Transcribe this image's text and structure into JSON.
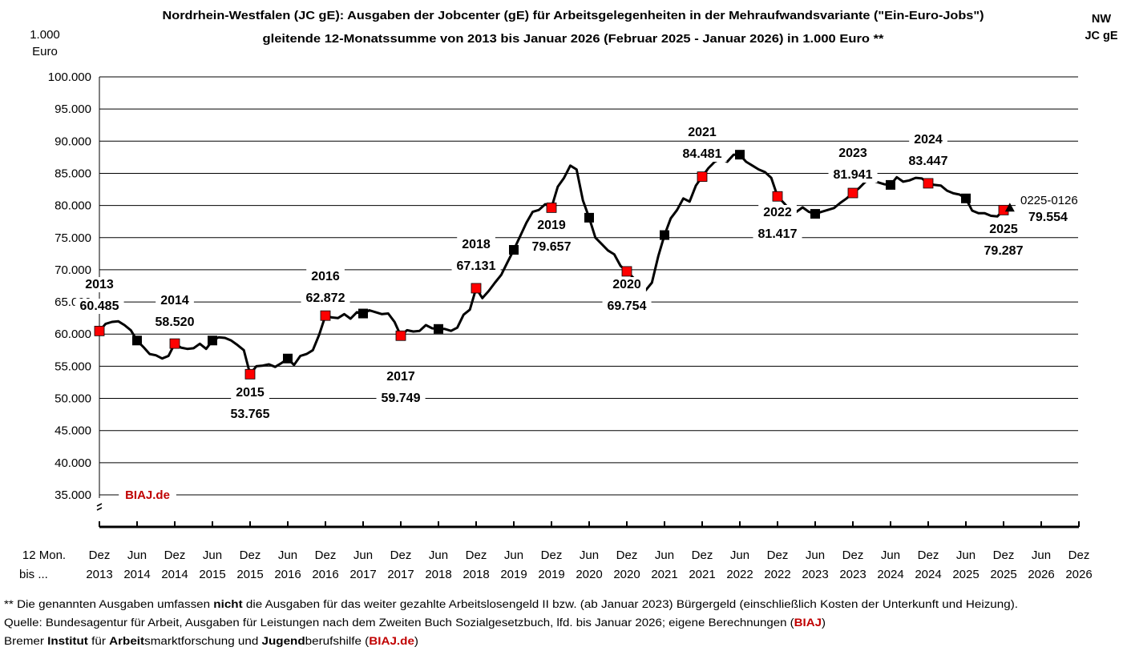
{
  "chart_data": {
    "type": "line",
    "title": "Nordrhein-Westfalen (JC gE): Ausgaben der Jobcenter (gE) für Arbeitsgelegenheiten in der Mehraufwandsvariante (\"Ein-Euro-Jobs\")",
    "subtitle": "gleitende 12-Monatssumme von 2013 bis Januar 2026 (Februar 2025 - Januar 2026) in 1.000 Euro **",
    "ylabel": [
      "1.000",
      "Euro"
    ],
    "region": [
      "NW",
      "JC gE"
    ],
    "xlabel": [
      "12 Mon.",
      "bis ..."
    ],
    "ylim": [
      35000,
      100000
    ],
    "yticks": [
      "35.000",
      "40.000",
      "45.000",
      "50.000",
      "55.000",
      "60.000",
      "65.000",
      "70.000",
      "75.000",
      "80.000",
      "85.000",
      "90.000",
      "95.000",
      "100.000"
    ],
    "xticks": [
      [
        "Dez",
        "2013"
      ],
      [
        "Jun",
        "2014"
      ],
      [
        "Dez",
        "2014"
      ],
      [
        "Jun",
        "2015"
      ],
      [
        "Dez",
        "2015"
      ],
      [
        "Jun",
        "2016"
      ],
      [
        "Dez",
        "2016"
      ],
      [
        "Jun",
        "2017"
      ],
      [
        "Dez",
        "2017"
      ],
      [
        "Jun",
        "2018"
      ],
      [
        "Dez",
        "2018"
      ],
      [
        "Jun",
        "2019"
      ],
      [
        "Dez",
        "2019"
      ],
      [
        "Jun",
        "2020"
      ],
      [
        "Dez",
        "2020"
      ],
      [
        "Jun",
        "2021"
      ],
      [
        "Dez",
        "2021"
      ],
      [
        "Jun",
        "2022"
      ],
      [
        "Dez",
        "2022"
      ],
      [
        "Jun",
        "2023"
      ],
      [
        "Dez",
        "2023"
      ],
      [
        "Jun",
        "2024"
      ],
      [
        "Dez",
        "2024"
      ],
      [
        "Jun",
        "2025"
      ],
      [
        "Dez",
        "2025"
      ],
      [
        "Jun",
        "2026"
      ],
      [
        "Dez",
        "2026"
      ]
    ],
    "grid": true,
    "y_axis_break": true,
    "colors": {
      "line": "#000000",
      "december_marker": "#ff0000",
      "june_marker": "#000000",
      "watermark": "#c00000"
    },
    "x": [
      "2013-12",
      "2014-01",
      "2014-02",
      "2014-03",
      "2014-04",
      "2014-05",
      "2014-06",
      "2014-07",
      "2014-08",
      "2014-09",
      "2014-10",
      "2014-11",
      "2014-12",
      "2015-01",
      "2015-02",
      "2015-03",
      "2015-04",
      "2015-05",
      "2015-06",
      "2015-07",
      "2015-08",
      "2015-09",
      "2015-10",
      "2015-11",
      "2015-12",
      "2016-01",
      "2016-02",
      "2016-03",
      "2016-04",
      "2016-05",
      "2016-06",
      "2016-07",
      "2016-08",
      "2016-09",
      "2016-10",
      "2016-11",
      "2016-12",
      "2017-01",
      "2017-02",
      "2017-03",
      "2017-04",
      "2017-05",
      "2017-06",
      "2017-07",
      "2017-08",
      "2017-09",
      "2017-10",
      "2017-11",
      "2017-12",
      "2018-01",
      "2018-02",
      "2018-03",
      "2018-04",
      "2018-05",
      "2018-06",
      "2018-07",
      "2018-08",
      "2018-09",
      "2018-10",
      "2018-11",
      "2018-12",
      "2019-01",
      "2019-02",
      "2019-03",
      "2019-04",
      "2019-05",
      "2019-06",
      "2019-07",
      "2019-08",
      "2019-09",
      "2019-10",
      "2019-11",
      "2019-12",
      "2020-01",
      "2020-02",
      "2020-03",
      "2020-04",
      "2020-05",
      "2020-06",
      "2020-07",
      "2020-08",
      "2020-09",
      "2020-10",
      "2020-11",
      "2020-12",
      "2021-01",
      "2021-02",
      "2021-03",
      "2021-04",
      "2021-05",
      "2021-06",
      "2021-07",
      "2021-08",
      "2021-09",
      "2021-10",
      "2021-11",
      "2021-12",
      "2022-01",
      "2022-02",
      "2022-03",
      "2022-04",
      "2022-05",
      "2022-06",
      "2022-07",
      "2022-08",
      "2022-09",
      "2022-10",
      "2022-11",
      "2022-12",
      "2023-01",
      "2023-02",
      "2023-03",
      "2023-04",
      "2023-05",
      "2023-06",
      "2023-07",
      "2023-08",
      "2023-09",
      "2023-10",
      "2023-11",
      "2023-12",
      "2024-01",
      "2024-02",
      "2024-03",
      "2024-04",
      "2024-05",
      "2024-06",
      "2024-07",
      "2024-08",
      "2024-09",
      "2024-10",
      "2024-11",
      "2024-12",
      "2025-01",
      "2025-02",
      "2025-03",
      "2025-04",
      "2025-05",
      "2025-06",
      "2025-07",
      "2025-08",
      "2025-09",
      "2025-10",
      "2025-11",
      "2025-12",
      "2026-01"
    ],
    "values": [
      60485,
      61600,
      61900,
      62000,
      61400,
      60600,
      59000,
      58000,
      56900,
      56700,
      56200,
      56600,
      58520,
      57900,
      57700,
      57800,
      58500,
      57700,
      59000,
      59500,
      59400,
      59000,
      58300,
      57500,
      53765,
      55000,
      55100,
      55300,
      54900,
      55500,
      56200,
      55200,
      56600,
      56900,
      57500,
      59900,
      62872,
      62600,
      62500,
      63100,
      62400,
      63400,
      63200,
      63700,
      63400,
      63100,
      63200,
      61900,
      59749,
      60600,
      60400,
      60500,
      61400,
      60900,
      60800,
      60800,
      60500,
      61000,
      63000,
      63800,
      67131,
      65600,
      66700,
      68000,
      69200,
      71200,
      73100,
      75200,
      77300,
      79000,
      79300,
      80200,
      79657,
      82900,
      84300,
      86200,
      85600,
      80800,
      78100,
      75000,
      74000,
      73000,
      72400,
      70600,
      69754,
      68800,
      67800,
      66800,
      68000,
      72100,
      75400,
      78000,
      79300,
      81100,
      80600,
      83100,
      84481,
      85800,
      86800,
      87300,
      86800,
      87900,
      87900,
      86800,
      86200,
      85600,
      85200,
      84300,
      81417,
      80400,
      79300,
      79000,
      79700,
      79000,
      78700,
      79000,
      79300,
      79600,
      80400,
      81100,
      81941,
      82700,
      83700,
      83900,
      83600,
      83300,
      83200,
      84400,
      83700,
      83900,
      84300,
      84200,
      83447,
      83200,
      83100,
      82300,
      81900,
      81700,
      81100,
      79200,
      78800,
      78800,
      78400,
      78300,
      79287,
      79554
    ],
    "annotations": [
      {
        "year": "2013",
        "value": "60.485"
      },
      {
        "year": "2014",
        "value": "58.520"
      },
      {
        "year": "2015",
        "value": "53.765"
      },
      {
        "year": "2016",
        "value": "62.872"
      },
      {
        "year": "2017",
        "value": "59.749"
      },
      {
        "year": "2018",
        "value": "67.131"
      },
      {
        "year": "2019",
        "value": "79.657"
      },
      {
        "year": "2020",
        "value": "69.754"
      },
      {
        "year": "2021",
        "value": "84.481"
      },
      {
        "year": "2022",
        "value": "81.417"
      },
      {
        "year": "2023",
        "value": "81.941"
      },
      {
        "year": "2024",
        "value": "83.447"
      },
      {
        "year": "2025",
        "value": "79.287"
      }
    ],
    "latest": {
      "period": "0225-0126",
      "value": "79.554"
    },
    "watermark": "BIAJ.de"
  },
  "footer": {
    "line1": [
      {
        "t": "** Die genannten Ausgaben umfassen ",
        "b": false
      },
      {
        "t": "nicht",
        "b": true
      },
      {
        "t": " die Ausgaben für das weiter gezahlte Arbeitslosengeld II bzw. (ab Januar 2023) Bürgergeld (einschließlich Kosten der Unterkunft und Heizung).",
        "b": false
      }
    ],
    "line2": [
      {
        "t": "Quelle: Bundesagentur für Arbeit, Ausgaben für Leistungen nach dem Zweiten Buch Sozialgesetzbuch, lfd. bis Januar 2026; eigene Berechnungen (",
        "b": false
      },
      {
        "t": "BIAJ",
        "b": true,
        "red": true
      },
      {
        "t": ")",
        "b": false
      }
    ],
    "line3": [
      {
        "t": "Bremer ",
        "b": false
      },
      {
        "t": "Institut",
        "b": true
      },
      {
        "t": " für ",
        "b": false
      },
      {
        "t": "Arbeit",
        "b": true
      },
      {
        "t": "smarktforschung und ",
        "b": false
      },
      {
        "t": "Jugend",
        "b": true
      },
      {
        "t": "berufshilfe (",
        "b": false
      },
      {
        "t": "BIAJ.de",
        "b": true,
        "red": true
      },
      {
        "t": ")",
        "b": false
      }
    ]
  }
}
